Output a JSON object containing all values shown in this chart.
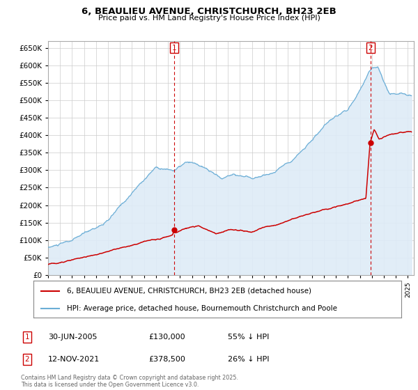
{
  "title": "6, BEAULIEU AVENUE, CHRISTCHURCH, BH23 2EB",
  "subtitle": "Price paid vs. HM Land Registry's House Price Index (HPI)",
  "ylim": [
    0,
    670000
  ],
  "yticks": [
    0,
    50000,
    100000,
    150000,
    200000,
    250000,
    300000,
    350000,
    400000,
    450000,
    500000,
    550000,
    600000,
    650000
  ],
  "xlim_start": 1995.0,
  "xlim_end": 2025.5,
  "sale1": {
    "date_num": 2005.5,
    "price": 130000,
    "label": "1",
    "date_str": "30-JUN-2005",
    "pct": "55% ↓ HPI"
  },
  "sale2": {
    "date_num": 2021.88,
    "price": 378500,
    "label": "2",
    "date_str": "12-NOV-2021",
    "pct": "26% ↓ HPI"
  },
  "hpi_color": "#6baed6",
  "hpi_fill_color": "#deebf7",
  "sale_color": "#cc0000",
  "legend_label1": "6, BEAULIEU AVENUE, CHRISTCHURCH, BH23 2EB (detached house)",
  "legend_label2": "HPI: Average price, detached house, Bournemouth Christchurch and Poole",
  "footer": "Contains HM Land Registry data © Crown copyright and database right 2025.\nThis data is licensed under the Open Government Licence v3.0.",
  "background_color": "#ffffff",
  "grid_color": "#cccccc"
}
